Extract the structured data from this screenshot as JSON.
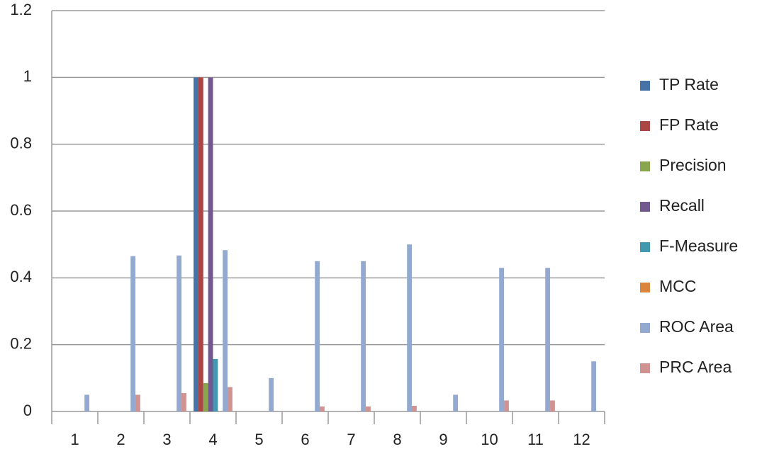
{
  "chart_data": {
    "type": "bar",
    "categories": [
      "1",
      "2",
      "3",
      "4",
      "5",
      "6",
      "7",
      "8",
      "9",
      "10",
      "11",
      "12"
    ],
    "series": [
      {
        "name": "TP Rate",
        "color": "#4572a7",
        "values": [
          0,
          0,
          0,
          1,
          0,
          0,
          0,
          0,
          0,
          0,
          0,
          0
        ]
      },
      {
        "name": "FP Rate",
        "color": "#aa4643",
        "values": [
          0,
          0,
          0,
          1,
          0,
          0,
          0,
          0,
          0,
          0,
          0,
          0
        ]
      },
      {
        "name": "Precision",
        "color": "#89a54e",
        "values": [
          0,
          0,
          0,
          0.085,
          0,
          0,
          0,
          0,
          0,
          0,
          0,
          0
        ]
      },
      {
        "name": "Recall",
        "color": "#71588f",
        "values": [
          0,
          0,
          0,
          1,
          0,
          0,
          0,
          0,
          0,
          0,
          0,
          0
        ]
      },
      {
        "name": "F-Measure",
        "color": "#4198af",
        "values": [
          0,
          0,
          0,
          0.157,
          0,
          0,
          0,
          0,
          0,
          0,
          0,
          0
        ]
      },
      {
        "name": "MCC",
        "color": "#db843d",
        "values": [
          0,
          0,
          0,
          0,
          0,
          0,
          0,
          0,
          0,
          0,
          0,
          0
        ]
      },
      {
        "name": "ROC Area",
        "color": "#93a9cf",
        "values": [
          0.05,
          0.465,
          0.467,
          0.483,
          0.1,
          0.45,
          0.45,
          0.5,
          0.05,
          0.43,
          0.43,
          0.15
        ]
      },
      {
        "name": "PRC Area",
        "color": "#d19392",
        "values": [
          0,
          0.05,
          0.055,
          0.073,
          0,
          0.015,
          0.015,
          0.017,
          0,
          0.033,
          0.033,
          0
        ]
      }
    ],
    "ylim": [
      0,
      1.2
    ],
    "yticks": [
      0,
      0.2,
      0.4,
      0.6,
      0.8,
      1,
      1.2
    ],
    "grid": true,
    "legend": "right"
  }
}
